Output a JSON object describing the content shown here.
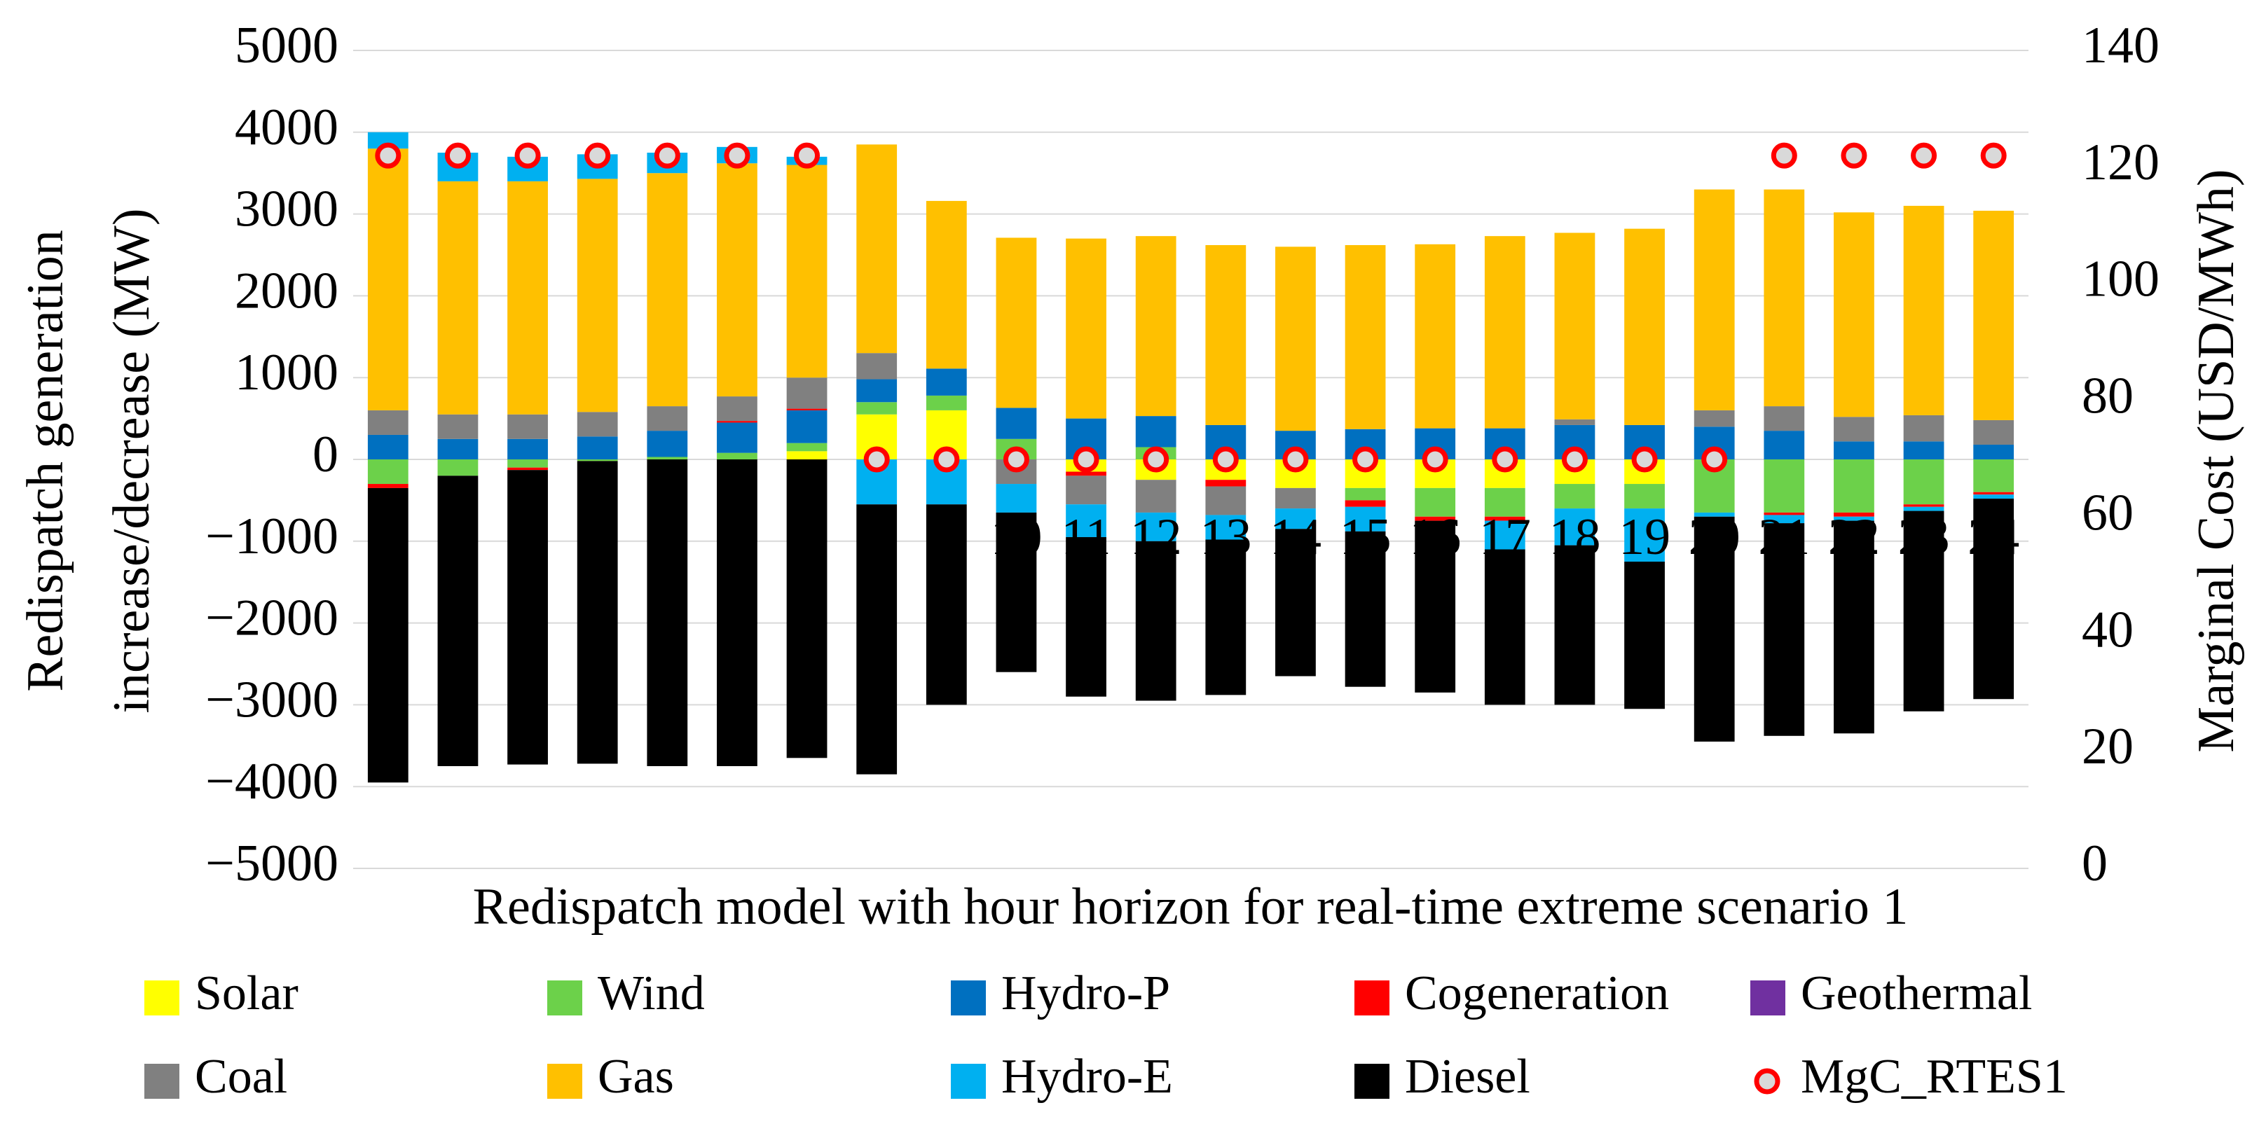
{
  "chart_data": {
    "type": "bar",
    "stacked": true,
    "grid": true,
    "legend": "bottom",
    "title": "Redispatch model with hour horizon for real-time extreme scenario 1",
    "ylabel": [
      "Redispatch generation",
      "increase/decrease (MW)"
    ],
    "y2label": "Marginal Cost (USD/MWh)",
    "categories": [
      null,
      null,
      null,
      null,
      null,
      null,
      null,
      null,
      null,
      "10",
      "11",
      "12",
      "13",
      "14",
      "15",
      "16",
      "17",
      "18",
      "19",
      "20",
      "21",
      "22",
      "23",
      "24"
    ],
    "ylim": [
      -5000,
      5000
    ],
    "yticks": [
      {
        "value": -5000,
        "label": "−5000"
      },
      {
        "value": -4000,
        "label": "−4000"
      },
      {
        "value": -3000,
        "label": "−3000"
      },
      {
        "value": -2000,
        "label": "−2000"
      },
      {
        "value": -1000,
        "label": "−1000"
      },
      0,
      1000,
      2000,
      3000,
      4000,
      5000
    ],
    "y2lim": [
      0,
      140
    ],
    "y2ticks": [
      0,
      20,
      40,
      60,
      80,
      100,
      120,
      140
    ],
    "series": [
      {
        "name": "Solar",
        "color": "#ffff00",
        "values": [
          0,
          0,
          0,
          0,
          0,
          0,
          100,
          550,
          600,
          0,
          -150,
          -250,
          -250,
          -350,
          -350,
          -350,
          -350,
          -300,
          -300,
          0,
          0,
          0,
          0,
          0
        ]
      },
      {
        "name": "Wind",
        "color": "#6cd14a",
        "values": [
          -300,
          -200,
          -100,
          -20,
          30,
          80,
          100,
          150,
          180,
          250,
          0,
          150,
          0,
          0,
          -150,
          -350,
          -350,
          -300,
          -300,
          -650,
          -650,
          -650,
          -550,
          -400
        ]
      },
      {
        "name": "Hydro-P",
        "color": "#0070c0",
        "values": [
          300,
          250,
          250,
          280,
          320,
          370,
          400,
          280,
          330,
          380,
          500,
          380,
          420,
          350,
          370,
          380,
          380,
          420,
          420,
          400,
          350,
          220,
          220,
          180
        ]
      },
      {
        "name": "Cogeneration",
        "color": "#ff0000",
        "values": [
          -50,
          0,
          -30,
          0,
          0,
          20,
          20,
          0,
          0,
          0,
          -50,
          0,
          -80,
          0,
          -80,
          -50,
          -50,
          0,
          0,
          0,
          -30,
          -50,
          -30,
          -30
        ]
      },
      {
        "name": "Geothermal",
        "color": "#7030a0",
        "values": [
          0,
          0,
          0,
          0,
          0,
          0,
          0,
          0,
          0,
          0,
          0,
          0,
          0,
          0,
          0,
          0,
          0,
          0,
          0,
          0,
          0,
          0,
          0,
          0
        ]
      },
      {
        "name": "Coal",
        "color": "#808080",
        "values": [
          300,
          300,
          300,
          300,
          300,
          300,
          380,
          320,
          0,
          -300,
          -350,
          -400,
          -350,
          -250,
          0,
          0,
          0,
          70,
          0,
          200,
          300,
          300,
          320,
          300
        ]
      },
      {
        "name": "Gas",
        "color": "#ffc000",
        "values": [
          3200,
          2850,
          2850,
          2850,
          2850,
          2850,
          2600,
          2550,
          2050,
          2080,
          2200,
          2200,
          2200,
          2250,
          2250,
          2250,
          2350,
          2280,
          2400,
          2700,
          2650,
          2500,
          2560,
          2560
        ]
      },
      {
        "name": "Hydro-E",
        "color": "#00b0f0",
        "values": [
          200,
          350,
          300,
          300,
          250,
          200,
          100,
          -550,
          -550,
          -350,
          -400,
          -350,
          -300,
          -250,
          -300,
          0,
          -350,
          -450,
          -650,
          -50,
          -100,
          -50,
          -50,
          -50
        ]
      },
      {
        "name": "Diesel",
        "color": "#000000",
        "values": [
          -3600,
          -3550,
          -3600,
          -3700,
          -3750,
          -3750,
          -3650,
          -3300,
          -2450,
          -1950,
          -1950,
          -1950,
          -1900,
          -1800,
          -1900,
          -2100,
          -1900,
          -1950,
          -1800,
          -2750,
          -2600,
          -2600,
          -2450,
          -2450
        ]
      },
      {
        "name": "MgC_RTES1",
        "color": "#ff0000",
        "axis": "y2",
        "marker": "circle",
        "values": [
          122,
          122,
          122,
          122,
          122,
          122,
          122,
          70,
          70,
          70,
          70,
          70,
          70,
          70,
          70,
          70,
          70,
          70,
          70,
          70,
          122,
          122,
          122,
          122
        ]
      }
    ]
  }
}
